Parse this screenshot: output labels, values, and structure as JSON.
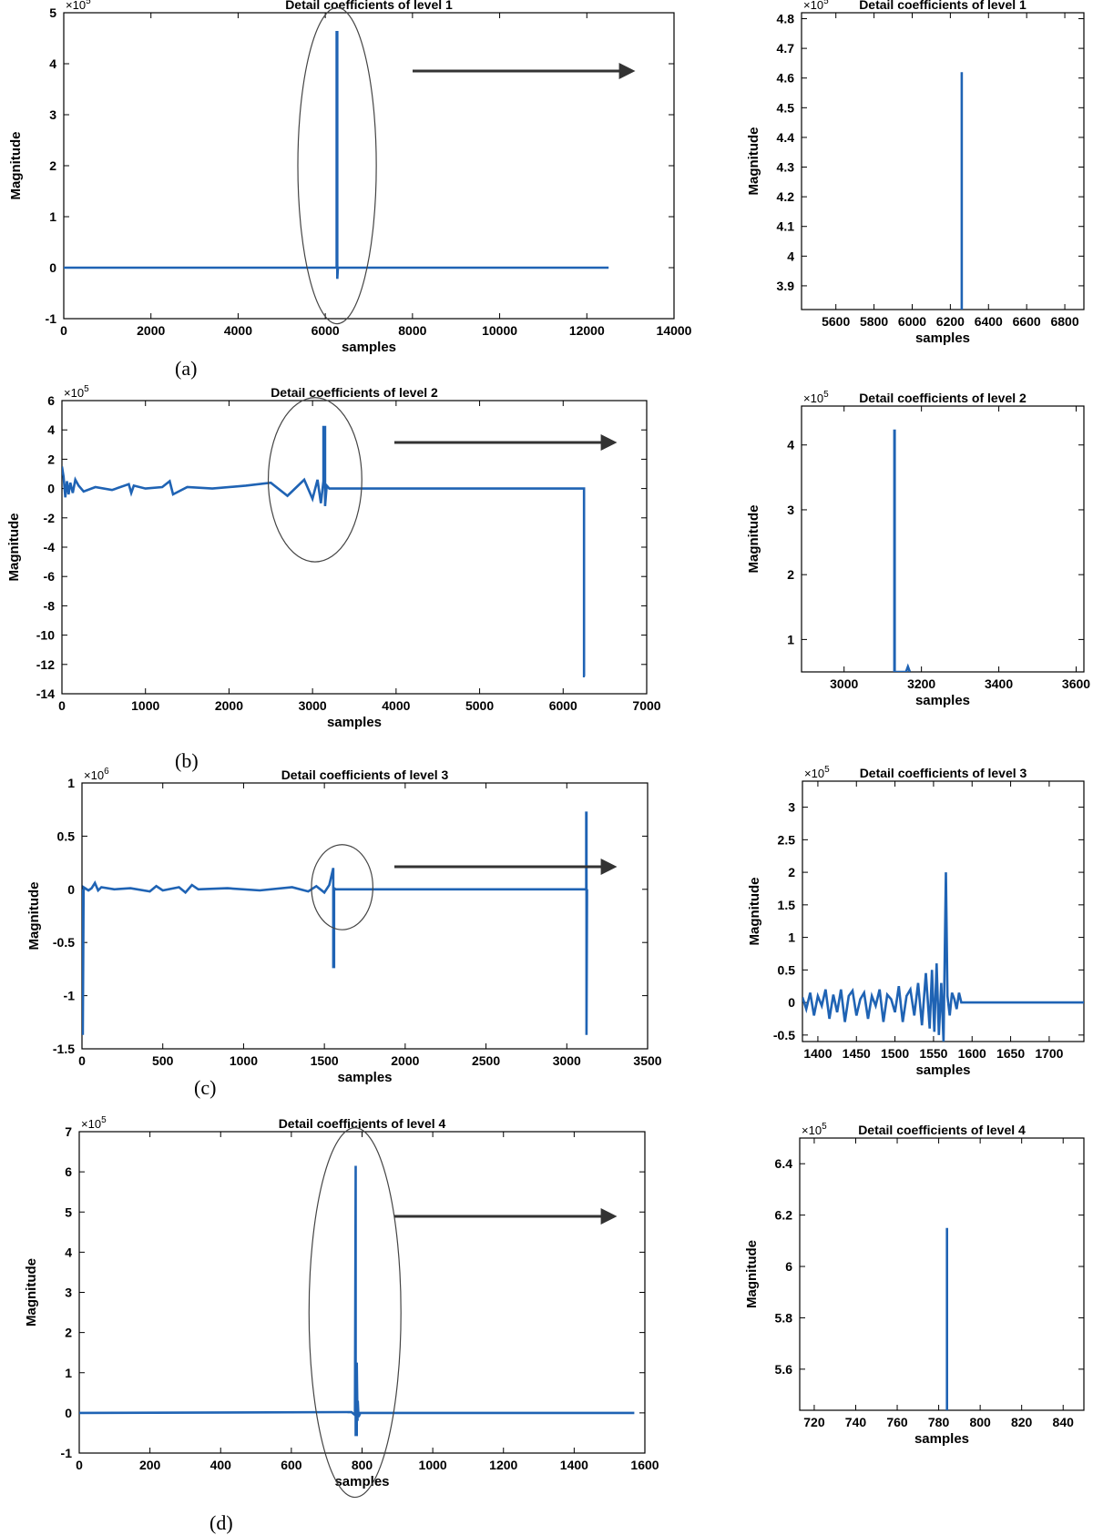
{
  "figure": {
    "panel_labels": [
      "(a)",
      "(b)",
      "(c)",
      "(d)"
    ]
  },
  "colors": {
    "series": "#1f63b4",
    "annotation": "#444444",
    "arrow": "#333333"
  },
  "chart_data": [
    {
      "id": "a-left",
      "type": "line",
      "title": "Detail coefficients of level 1",
      "xlabel": "samples",
      "ylabel": "Magnitude",
      "exponent": "5",
      "xlim": [
        0,
        14000
      ],
      "ylim": [
        -1,
        5
      ],
      "xticks": [
        0,
        2000,
        4000,
        6000,
        8000,
        10000,
        12000,
        14000
      ],
      "yticks": [
        -1,
        0,
        1,
        2,
        3,
        4,
        5
      ],
      "x": [
        0,
        6260,
        6260,
        6275,
        6275,
        6290,
        12500
      ],
      "y": [
        0,
        0,
        4.62,
        4.62,
        -0.22,
        0,
        0
      ],
      "spikes": [],
      "annotation": {
        "type": "ellipse",
        "cx": 6270,
        "cy": 2.0,
        "rx": 900,
        "ry": 3.1
      }
    },
    {
      "id": "a-right",
      "type": "line",
      "title": "Detail coefficients of level 1",
      "xlabel": "samples",
      "ylabel": "Magnitude",
      "exponent": "5",
      "xlim": [
        5420,
        6900
      ],
      "ylim": [
        3.82,
        4.82
      ],
      "xticks": [
        5600,
        5800,
        6000,
        6200,
        6400,
        6600,
        6800
      ],
      "yticks": [
        3.9,
        4,
        4.1,
        4.2,
        4.3,
        4.4,
        4.5,
        4.6,
        4.7,
        4.8
      ],
      "x": [
        6260,
        6260
      ],
      "y": [
        3.82,
        4.62
      ],
      "spikes": []
    },
    {
      "id": "b-left",
      "type": "line",
      "title": "Detail coefficients of level 2",
      "xlabel": "samples",
      "ylabel": "Magnitude",
      "exponent": "5",
      "xlim": [
        0,
        7000
      ],
      "ylim": [
        -14,
        6
      ],
      "xticks": [
        0,
        1000,
        2000,
        3000,
        4000,
        5000,
        6000,
        7000
      ],
      "yticks": [
        -14,
        -12,
        -10,
        -8,
        -6,
        -4,
        -2,
        0,
        2,
        4,
        6
      ],
      "x": [
        0,
        20,
        40,
        60,
        80,
        100,
        130,
        160,
        200,
        260,
        400,
        600,
        800,
        830,
        860,
        1000,
        1200,
        1290,
        1330,
        1500,
        1800,
        2200,
        2500,
        2700,
        2900,
        3000,
        3060,
        3100,
        3130,
        3130,
        3150,
        3150,
        3170,
        3200,
        6250,
        6250,
        6260
      ],
      "y": [
        1.5,
        0.8,
        -0.6,
        0.5,
        -0.4,
        0.4,
        -0.3,
        0.6,
        0.2,
        -0.2,
        0.1,
        -0.1,
        0.3,
        -0.3,
        0.2,
        0,
        0.1,
        0.5,
        -0.4,
        0.1,
        0,
        0.2,
        0.4,
        -0.5,
        0.6,
        -0.7,
        0.6,
        -1.0,
        0.5,
        4.2,
        4.2,
        -1.2,
        0.2,
        0,
        0,
        -12.8,
        -12.8
      ],
      "spikes": [],
      "annotation": {
        "type": "ellipse",
        "cx": 3030,
        "cy": 0.6,
        "rx": 560,
        "ry": 5.6
      }
    },
    {
      "id": "b-right",
      "type": "line",
      "title": "Detail coefficients of level 2",
      "xlabel": "samples",
      "ylabel": "Magnitude",
      "exponent": "5",
      "xlim": [
        2890,
        3620
      ],
      "ylim": [
        0.5,
        4.6
      ],
      "xticks": [
        3000,
        3200,
        3400,
        3600
      ],
      "yticks": [
        1,
        2,
        3,
        4
      ],
      "x": [
        3130,
        3130,
        3131,
        3131,
        3160,
        3165,
        3170
      ],
      "y": [
        0.5,
        4.22,
        4.22,
        0.5,
        0.5,
        0.58,
        0.5
      ],
      "spikes": []
    },
    {
      "id": "c-left",
      "type": "line",
      "title": "Detail coefficients of level 3",
      "xlabel": "samples",
      "ylabel": "Magnitude",
      "exponent": "6",
      "xlim": [
        0,
        3500
      ],
      "ylim": [
        -1.5,
        1
      ],
      "xticks": [
        0,
        500,
        1000,
        1500,
        2000,
        2500,
        3000,
        3500
      ],
      "yticks": [
        -1.5,
        -1,
        -0.5,
        0,
        0.5,
        1
      ],
      "x": [
        0,
        5,
        10,
        20,
        40,
        60,
        80,
        100,
        120,
        200,
        300,
        420,
        460,
        500,
        600,
        640,
        680,
        720,
        900,
        1100,
        1300,
        1400,
        1450,
        1500,
        1530,
        1555,
        1555,
        1560,
        1560,
        1570,
        1580,
        3120,
        3120,
        3122,
        3122,
        3125
      ],
      "y": [
        0,
        -1.37,
        0.02,
        0.01,
        -0.01,
        0.01,
        0.06,
        -0.01,
        0.02,
        0,
        0.01,
        -0.02,
        0.03,
        -0.01,
        0.02,
        -0.03,
        0.04,
        0,
        0.01,
        -0.01,
        0.02,
        -0.02,
        0.03,
        -0.03,
        0.04,
        0.2,
        -0.73,
        -0.73,
        0.01,
        0,
        0,
        0,
        0.72,
        0.72,
        -1.37,
        0
      ],
      "spikes": [],
      "annotation": {
        "type": "ellipse",
        "cx": 1610,
        "cy": 0.02,
        "rx": 190,
        "ry": 0.4
      }
    },
    {
      "id": "c-right",
      "type": "line",
      "title": "Detail coefficients of level 3",
      "xlabel": "samples",
      "ylabel": "Magnitude",
      "exponent": "5",
      "xlim": [
        1380,
        1745
      ],
      "ylim": [
        -0.6,
        3.4
      ],
      "xticks": [
        1400,
        1450,
        1500,
        1550,
        1600,
        1650,
        1700
      ],
      "yticks": [
        -0.5,
        0,
        0.5,
        1,
        1.5,
        2,
        2.5,
        3
      ],
      "x": [
        1380,
        1385,
        1390,
        1395,
        1400,
        1405,
        1410,
        1415,
        1420,
        1425,
        1430,
        1435,
        1440,
        1445,
        1450,
        1455,
        1460,
        1465,
        1470,
        1475,
        1480,
        1485,
        1490,
        1495,
        1500,
        1505,
        1510,
        1515,
        1520,
        1525,
        1530,
        1535,
        1540,
        1545,
        1548,
        1551,
        1554,
        1557,
        1560,
        1563,
        1566,
        1568,
        1571,
        1574,
        1577,
        1580,
        1583,
        1586,
        1745
      ],
      "y": [
        0.08,
        -0.1,
        0.15,
        -0.2,
        0.1,
        -0.05,
        0.2,
        -0.25,
        0.12,
        -0.15,
        0.2,
        -0.3,
        0.1,
        0.18,
        -0.2,
        0.05,
        0.15,
        -0.25,
        0.1,
        -0.05,
        0.2,
        -0.3,
        0.12,
        0.05,
        -0.15,
        0.25,
        -0.3,
        0.1,
        0.2,
        -0.2,
        0.3,
        -0.35,
        0.45,
        -0.4,
        0.5,
        -0.45,
        0.6,
        -0.5,
        0.3,
        -0.6,
        2.0,
        0.1,
        -0.2,
        0.15,
        0.05,
        -0.1,
        0.15,
        0,
        0
      ],
      "spikes": []
    },
    {
      "id": "d-left",
      "type": "line",
      "title": "Detail coefficients of level 4",
      "xlabel": "samples",
      "ylabel": "Magnitude",
      "exponent": "5",
      "xlim": [
        0,
        1600
      ],
      "ylim": [
        -1,
        7
      ],
      "xticks": [
        0,
        200,
        400,
        600,
        800,
        1000,
        1200,
        1400,
        1600
      ],
      "yticks": [
        -1,
        0,
        1,
        2,
        3,
        4,
        5,
        6,
        7
      ],
      "x": [
        0,
        770,
        780,
        782,
        782,
        785,
        785,
        787,
        788,
        790,
        795,
        1570
      ],
      "y": [
        0,
        0.02,
        -0.05,
        6.15,
        -0.55,
        -0.55,
        1.25,
        -0.2,
        0.3,
        -0.1,
        0,
        0
      ],
      "spikes": [],
      "annotation": {
        "type": "ellipse",
        "cx": 780,
        "cy": 2.5,
        "rx": 130,
        "ry": 4.6
      }
    },
    {
      "id": "d-right",
      "type": "line",
      "title": "Detail coefficients of level 4",
      "xlabel": "samples",
      "ylabel": "Magnitude",
      "exponent": "5",
      "xlim": [
        713,
        850
      ],
      "ylim": [
        5.44,
        6.5
      ],
      "xticks": [
        720,
        740,
        760,
        780,
        800,
        820,
        840
      ],
      "yticks": [
        5.6,
        5.8,
        6,
        6.2,
        6.4
      ],
      "x": [
        784,
        784
      ],
      "y": [
        5.44,
        6.15
      ],
      "spikes": []
    }
  ]
}
